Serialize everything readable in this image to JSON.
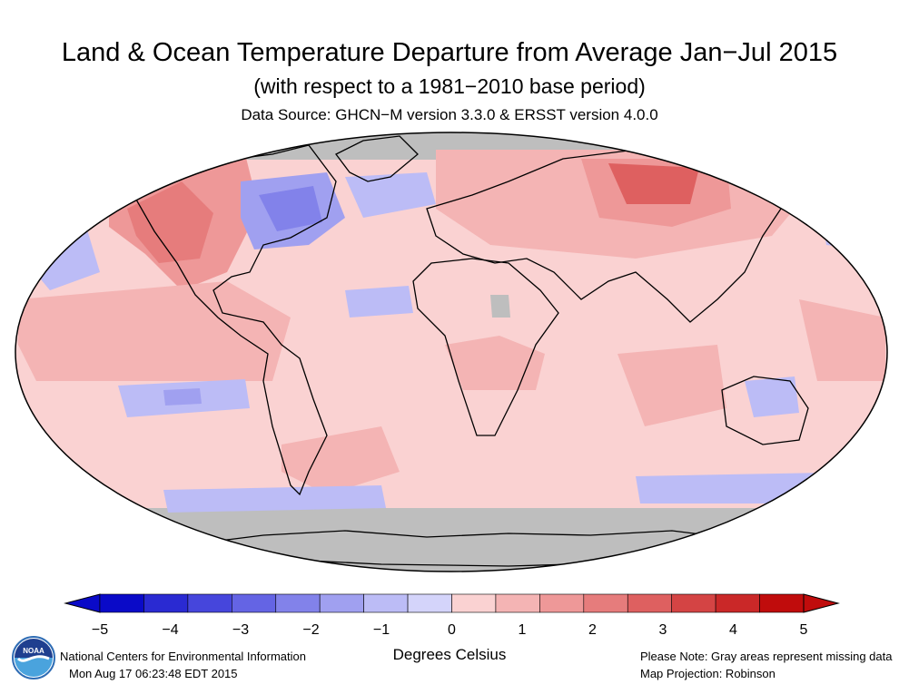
{
  "header": {
    "title": "Land & Ocean Temperature Departure from Average Jan−Jul 2015",
    "subtitle": "(with respect to a 1981−2010 base period)",
    "source": "Data Source: GHCN−M version 3.3.0 & ERSST version 4.0.0"
  },
  "colors": {
    "missing": "#bebebe",
    "scale": [
      "#0a0ac8",
      "#2a2ad2",
      "#4646dc",
      "#6464e4",
      "#8282ea",
      "#a0a0f0",
      "#bcbcf6",
      "#d4d4fa",
      "#fad2d2",
      "#f4b4b4",
      "#ee9898",
      "#e67c7c",
      "#de6060",
      "#d44444",
      "#ca2828",
      "#c00c0c"
    ]
  },
  "legend": {
    "ticks": [
      "−5",
      "−4",
      "−3",
      "−2",
      "−1",
      "0",
      "1",
      "2",
      "3",
      "4",
      "5"
    ],
    "units": "Degrees Celsius"
  },
  "footer": {
    "organization": "National Centers for Environmental Information",
    "timestamp": "Mon Aug 17 06:23:48 EDT 2015",
    "note": "Please Note: Gray areas represent missing data",
    "projection": "Map Projection: Robinson"
  },
  "logo": {
    "icon": "noaa-logo-icon",
    "text": "NOAA"
  }
}
